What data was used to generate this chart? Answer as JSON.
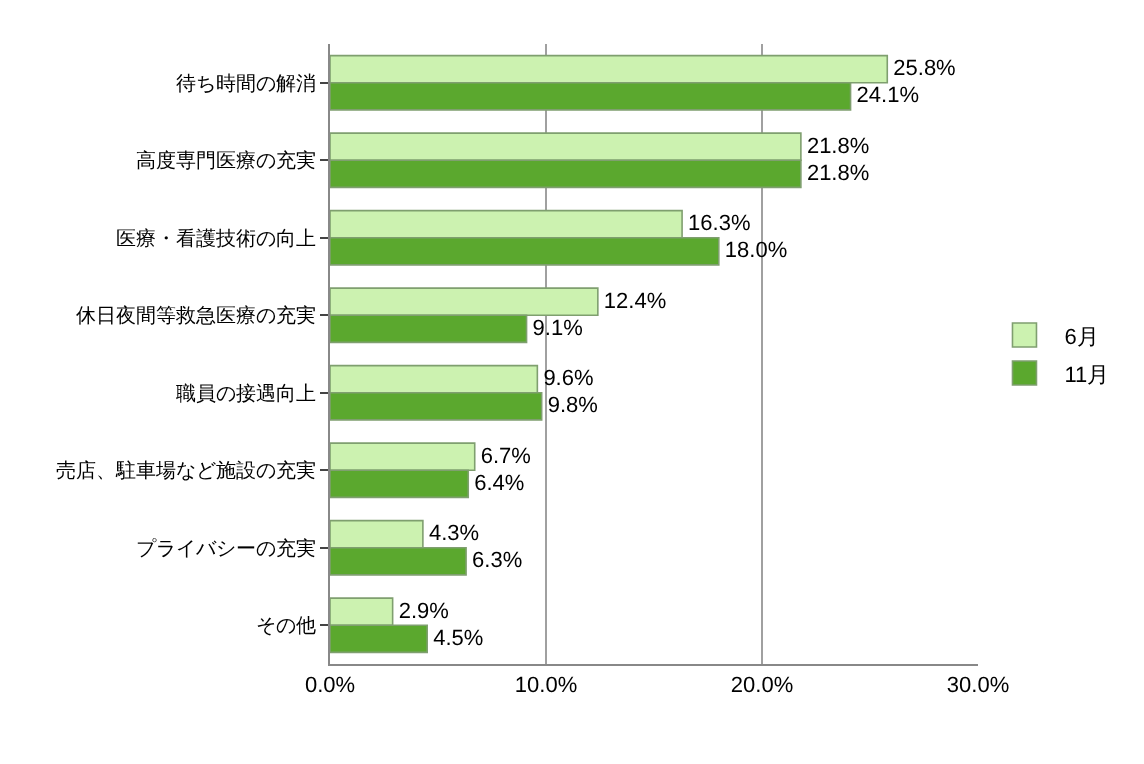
{
  "chart_data": {
    "type": "bar",
    "orientation": "horizontal",
    "categories": [
      "待ち時間の解消",
      "高度専門医療の充実",
      "医療・看護技術の向上",
      "休日夜間等救急医療の充実",
      "職員の接遇向上",
      "売店、駐車場など施設の充実",
      "プライバシーの充実",
      "その他"
    ],
    "series": [
      {
        "name": "6月",
        "color": "#ccf2b0",
        "values": [
          25.8,
          21.8,
          16.3,
          12.4,
          9.6,
          6.7,
          4.3,
          2.9
        ],
        "value_labels": [
          "25.8%",
          "21.8%",
          "16.3%",
          "12.4%",
          "9.6%",
          "6.7%",
          "4.3%",
          "2.9%"
        ]
      },
      {
        "name": "11月",
        "color": "#5ba82e",
        "values": [
          24.1,
          21.8,
          18.0,
          9.1,
          9.8,
          6.4,
          6.3,
          4.5
        ],
        "value_labels": [
          "24.1%",
          "21.8%",
          "18.0%",
          "9.1%",
          "9.8%",
          "6.4%",
          "6.3%",
          "4.5%"
        ]
      }
    ],
    "xlim": [
      0,
      30
    ],
    "xticks": [
      {
        "value": 0,
        "label": "0.0%"
      },
      {
        "value": 10,
        "label": "10.0%"
      },
      {
        "value": 20,
        "label": "20.0%"
      },
      {
        "value": 30,
        "label": "30.0%"
      }
    ],
    "grid": "x",
    "legend": "right"
  }
}
